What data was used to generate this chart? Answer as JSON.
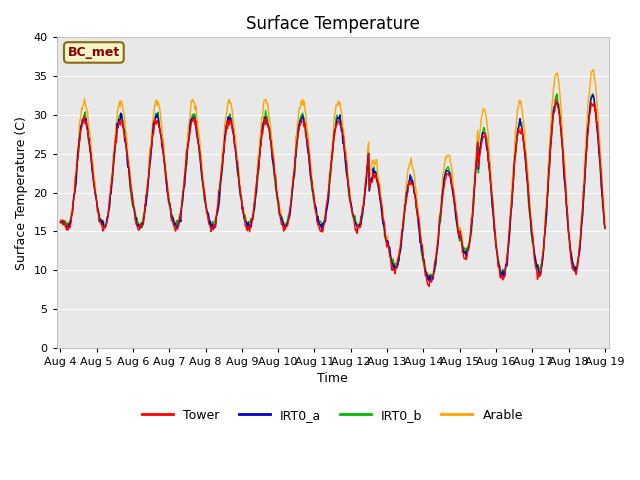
{
  "title": "Surface Temperature",
  "ylabel": "Surface Temperature (C)",
  "xlabel": "Time",
  "ylim": [
    0,
    40
  ],
  "yticks": [
    0,
    5,
    10,
    15,
    20,
    25,
    30,
    35,
    40
  ],
  "plot_bg": "#e8e8e8",
  "fig_bg": "#ffffff",
  "annotation_text": "BC_met",
  "annotation_fg": "#8b0000",
  "annotation_bg": "#f5f5c8",
  "annotation_edge": "#8b6914",
  "colors": {
    "Tower": "#ff0000",
    "IRT0_a": "#0000cc",
    "IRT0_b": "#00bb00",
    "Arable": "#ffa500"
  },
  "lw": 1.0,
  "grid_color": "#ffffff",
  "tick_labelsize": 8,
  "title_fontsize": 12,
  "label_fontsize": 9,
  "legend_fontsize": 9,
  "n_days": 15,
  "pts_per_day": 48
}
